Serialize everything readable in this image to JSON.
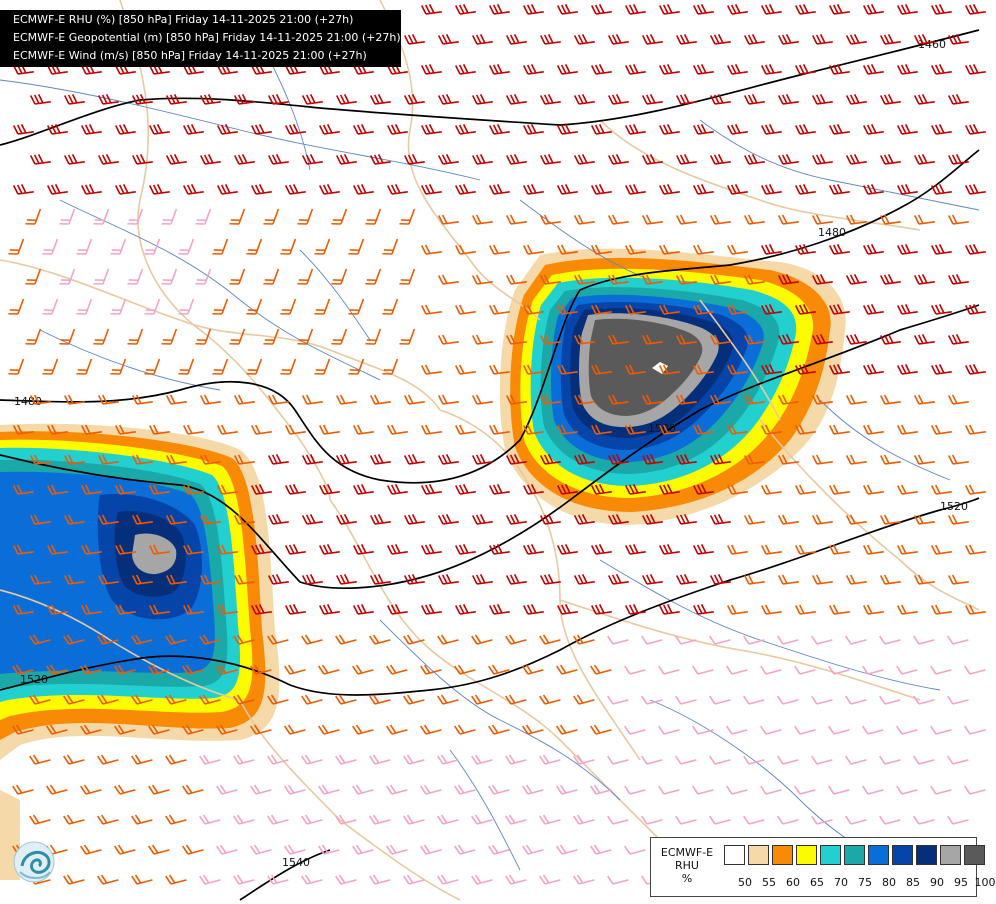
{
  "titles": [
    "ECMWF-E RHU (%) [850 hPa] Friday 14-11-2025 21:00 (+27h)",
    "ECMWF-E Geopotential (m) [850 hPa] Friday 14-11-2025 21:00 (+27h)",
    "ECMWF-E Wind (m/s) [850 hPa] Friday 14-11-2025 21:00 (+27h)"
  ],
  "legend": {
    "title_line1": "ECMWF-E",
    "title_line2": "RHU",
    "unit": "%",
    "ticks": [
      "50",
      "55",
      "60",
      "65",
      "70",
      "75",
      "80",
      "85",
      "90",
      "95",
      "100"
    ],
    "colors": [
      "#ffffff",
      "#f6d9a8",
      "#f98a05",
      "#fdfb00",
      "#22d0d0",
      "#1aa8a8",
      "#0a6ed8",
      "#0544a8",
      "#052f7a",
      "#a6a6a6",
      "#5a5a5a"
    ]
  },
  "contours": {
    "labels": [
      "1460",
      "1480",
      "1480",
      "1500",
      "1520",
      "1520",
      "1540"
    ],
    "line_color": "#000000"
  },
  "colors": {
    "border_country": "#e8c9a0",
    "river": "#5d86c8",
    "wind_strong": "#c40000",
    "wind_medium": "#f05a00",
    "wind_light": "#f5a3c8"
  },
  "icons": {
    "logo": "ecmwf-swirl-logo-icon"
  }
}
